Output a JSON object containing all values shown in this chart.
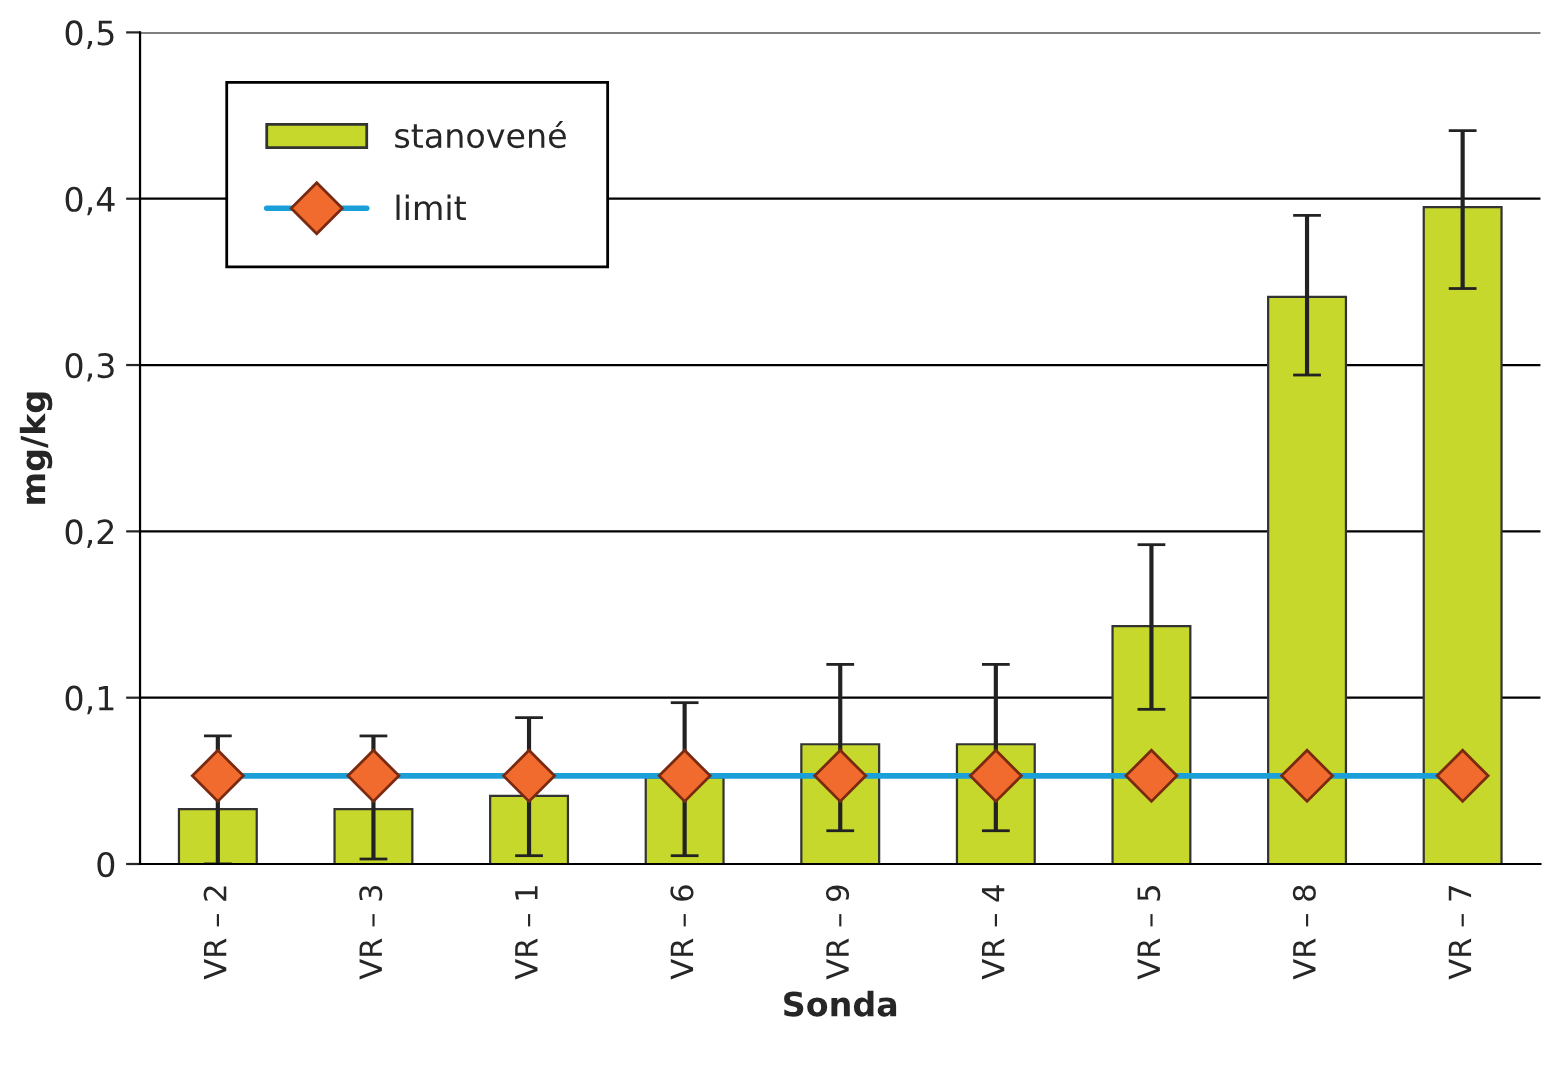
{
  "chart_data": {
    "type": "bar",
    "xlabel": "Sonda",
    "ylabel": "mg/kg",
    "categories": [
      "VR – 2",
      "VR – 3",
      "VR – 1",
      "VR – 6",
      "VR – 9",
      "VR – 4",
      "VR – 5",
      "VR – 8",
      "VR – 7"
    ],
    "series": [
      {
        "name": "stanovené",
        "color": "#c5d82b",
        "values": [
          0.033,
          0.033,
          0.041,
          0.052,
          0.072,
          0.072,
          0.143,
          0.341,
          0.395
        ],
        "errors": [
          [
            0.0,
            0.077
          ],
          [
            0.003,
            0.077
          ],
          [
            0.005,
            0.088
          ],
          [
            0.005,
            0.097
          ],
          [
            0.02,
            0.12
          ],
          [
            0.02,
            0.12
          ],
          [
            0.093,
            0.192
          ],
          [
            0.294,
            0.39
          ],
          [
            0.346,
            0.441
          ]
        ]
      },
      {
        "name": "limit",
        "type": "line",
        "color": "#1a9fd9",
        "marker": "diamond",
        "values": [
          0.053,
          0.053,
          0.053,
          0.053,
          0.053,
          0.053,
          0.053,
          0.053,
          0.053
        ]
      }
    ],
    "ylim": [
      0,
      0.5
    ],
    "yticks": [
      {
        "value": 0,
        "label": "0"
      },
      {
        "value": 0.1,
        "label": "0,1"
      },
      {
        "value": 0.2,
        "label": "0,2"
      },
      {
        "value": 0.3,
        "label": "0,3"
      },
      {
        "value": 0.4,
        "label": "0,4"
      },
      {
        "value": 0.5,
        "label": "0,5"
      }
    ],
    "grid": "y",
    "legend": "top left"
  }
}
